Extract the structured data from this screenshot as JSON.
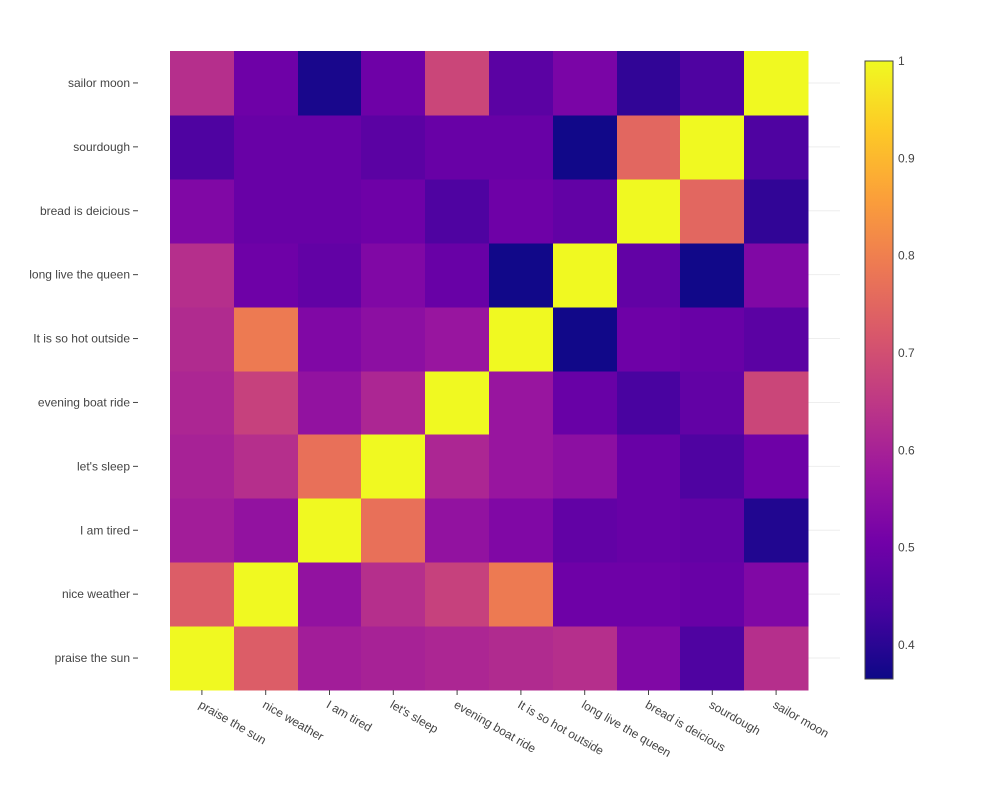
{
  "chart_data": {
    "type": "heatmap",
    "title": "",
    "xlabel": "",
    "ylabel": "",
    "categories": [
      "praise the sun",
      "nice weather",
      "I am tired",
      "let's sleep",
      "evening boat ride",
      "It is so hot outside",
      "long live the queen",
      "bread is deicious",
      "sourdough",
      "sailor moon"
    ],
    "x": [
      "praise the sun",
      "nice weather",
      "I am tired",
      "let's sleep",
      "evening boat ride",
      "It is so hot outside",
      "long live the queen",
      "bread is deicious",
      "sourdough",
      "sailor moon"
    ],
    "y": [
      "praise the sun",
      "nice weather",
      "I am tired",
      "let's sleep",
      "evening boat ride",
      "It is so hot outside",
      "long live the queen",
      "bread is deicious",
      "sourdough",
      "sailor moon"
    ],
    "z": [
      [
        1.0,
        0.73,
        0.59,
        0.6,
        0.61,
        0.62,
        0.63,
        0.53,
        0.45,
        0.63
      ],
      [
        0.73,
        1.0,
        0.56,
        0.63,
        0.67,
        0.79,
        0.5,
        0.5,
        0.49,
        0.53
      ],
      [
        0.59,
        0.56,
        1.0,
        0.77,
        0.56,
        0.53,
        0.48,
        0.49,
        0.48,
        0.39
      ],
      [
        0.6,
        0.63,
        0.77,
        1.0,
        0.61,
        0.57,
        0.55,
        0.49,
        0.45,
        0.5
      ],
      [
        0.61,
        0.67,
        0.56,
        0.61,
        1.0,
        0.57,
        0.49,
        0.44,
        0.48,
        0.68
      ],
      [
        0.62,
        0.79,
        0.53,
        0.55,
        0.57,
        1.0,
        0.37,
        0.5,
        0.49,
        0.47
      ],
      [
        0.63,
        0.5,
        0.48,
        0.53,
        0.49,
        0.37,
        1.0,
        0.48,
        0.37,
        0.53
      ],
      [
        0.53,
        0.49,
        0.49,
        0.5,
        0.45,
        0.5,
        0.48,
        1.0,
        0.75,
        0.41
      ],
      [
        0.45,
        0.49,
        0.49,
        0.47,
        0.49,
        0.49,
        0.37,
        0.75,
        1.0,
        0.45
      ],
      [
        0.63,
        0.5,
        0.38,
        0.5,
        0.68,
        0.47,
        0.52,
        0.41,
        0.45,
        1.0
      ]
    ],
    "zmin": 0.365,
    "zmax": 1.0,
    "colorscale": "plasma",
    "colorbar_ticks": [
      "0.4",
      "0.5",
      "0.6",
      "0.7",
      "0.8",
      "0.9",
      "1"
    ],
    "colorbar_tick_values": [
      0.4,
      0.5,
      0.6,
      0.7,
      0.8,
      0.9,
      1.0
    ],
    "grid": true,
    "legend": "colorbar-right"
  },
  "colors": {
    "colorscale_stops": [
      "#0d0887",
      "#46039f",
      "#7201a8",
      "#9c179e",
      "#bd3786",
      "#d8576b",
      "#ed7953",
      "#fb9f3a",
      "#fdca26",
      "#f0f921"
    ],
    "grid": "#eeeeee",
    "axis_text": "#444444",
    "colorbar_outline": "#444444"
  }
}
